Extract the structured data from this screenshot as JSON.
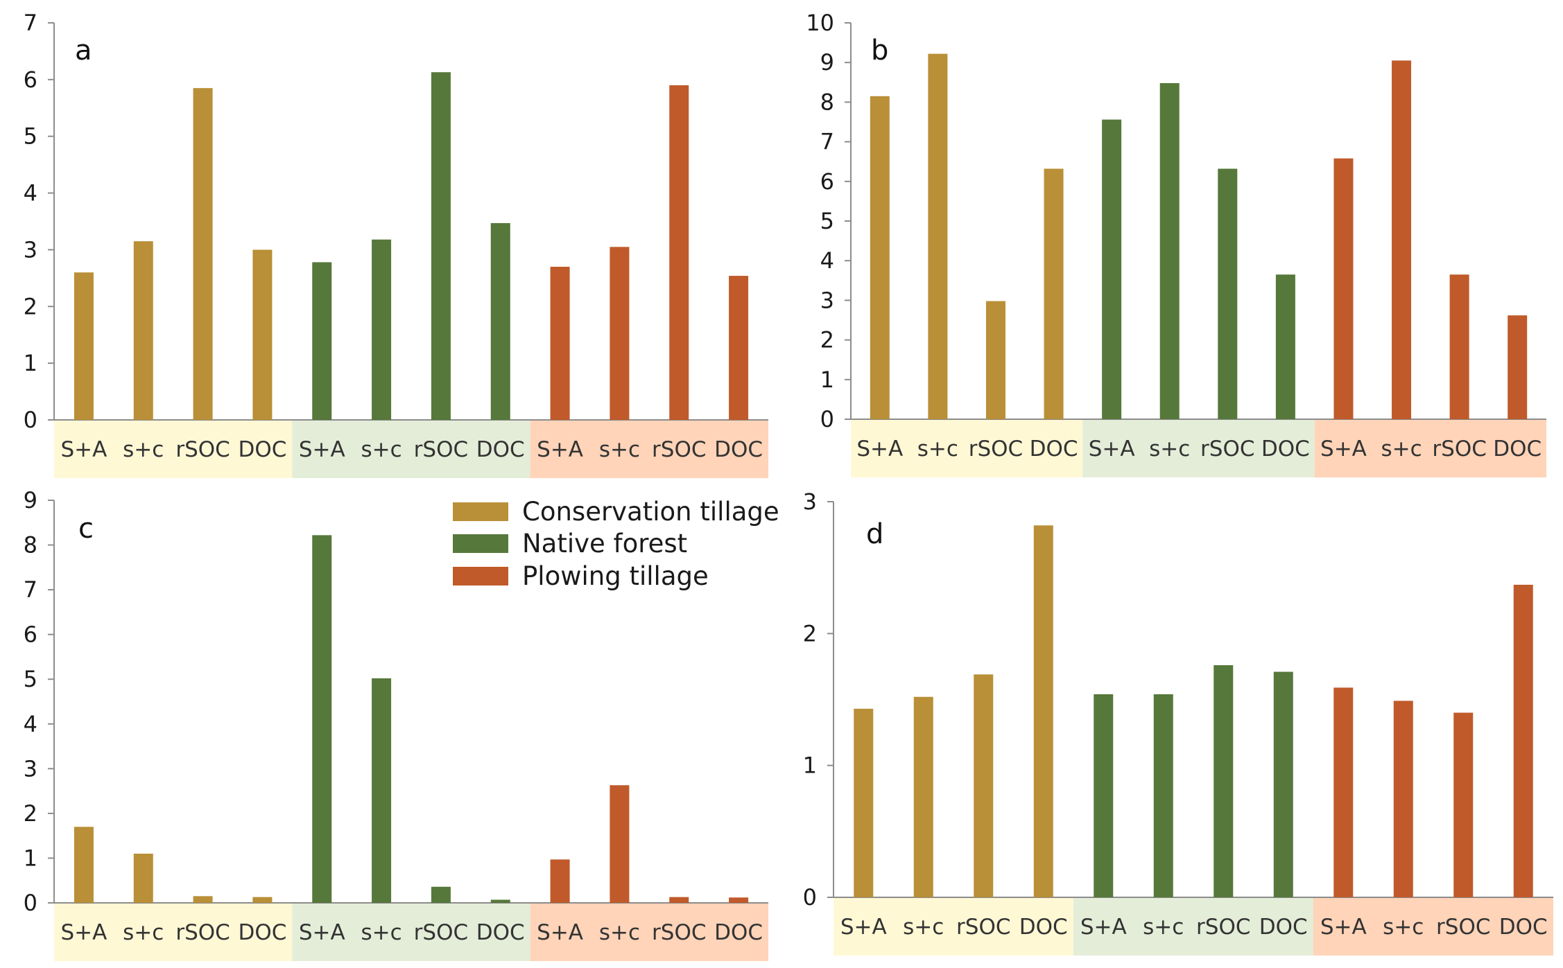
{
  "chart_data": {
    "type": "bar",
    "shared_categories": [
      "S+A",
      "s+c",
      "rSOC",
      "DOC",
      "S+A",
      "s+c",
      "rSOC",
      "DOC",
      "S+A",
      "s+c",
      "rSOC",
      "DOC"
    ],
    "groups": [
      {
        "name": "Conservation tillage",
        "color": "#B98F37",
        "band_color": "#FFF8D5"
      },
      {
        "name": "Native forest",
        "color": "#56783A",
        "band_color": "#E4EDD8"
      },
      {
        "name": "Plowing tillage",
        "color": "#C05A2A",
        "band_color": "#FFD4B9"
      }
    ],
    "legend": {
      "position": "top-right of panel c"
    },
    "panels": [
      {
        "label": "a",
        "ylim": [
          0,
          7
        ],
        "yticks": [
          0,
          1,
          2,
          3,
          4,
          5,
          6,
          7
        ],
        "series": [
          {
            "name": "Conservation tillage",
            "values": [
              2.6,
              3.15,
              5.85,
              3.0
            ]
          },
          {
            "name": "Native forest",
            "values": [
              2.78,
              3.18,
              6.13,
              3.47
            ]
          },
          {
            "name": "Plowing tillage",
            "values": [
              2.7,
              3.05,
              5.9,
              2.54
            ]
          }
        ]
      },
      {
        "label": "b",
        "ylim": [
          0,
          10
        ],
        "yticks": [
          0,
          1,
          2,
          3,
          4,
          5,
          6,
          7,
          8,
          9,
          10
        ],
        "series": [
          {
            "name": "Conservation tillage",
            "values": [
              8.15,
              9.22,
              2.98,
              6.32
            ]
          },
          {
            "name": "Native forest",
            "values": [
              7.56,
              8.48,
              6.32,
              3.65
            ]
          },
          {
            "name": "Plowing tillage",
            "values": [
              6.58,
              9.05,
              3.65,
              2.62
            ]
          }
        ]
      },
      {
        "label": "c",
        "ylim": [
          0,
          9
        ],
        "yticks": [
          0,
          1,
          2,
          3,
          4,
          5,
          6,
          7,
          8,
          9
        ],
        "series": [
          {
            "name": "Conservation tillage",
            "values": [
              1.7,
              1.1,
              0.15,
              0.13
            ]
          },
          {
            "name": "Native forest",
            "values": [
              8.22,
              5.02,
              0.36,
              0.07
            ]
          },
          {
            "name": "Plowing tillage",
            "values": [
              0.97,
              2.63,
              0.13,
              0.12
            ]
          }
        ]
      },
      {
        "label": "d",
        "ylim": [
          0,
          3
        ],
        "yticks": [
          0,
          1,
          2,
          3
        ],
        "series": [
          {
            "name": "Conservation tillage",
            "values": [
              1.43,
              1.52,
              1.69,
              2.82
            ]
          },
          {
            "name": "Native forest",
            "values": [
              1.54,
              1.54,
              1.76,
              1.71
            ]
          },
          {
            "name": "Plowing tillage",
            "values": [
              1.59,
              1.49,
              1.4,
              2.37
            ]
          }
        ]
      }
    ]
  }
}
